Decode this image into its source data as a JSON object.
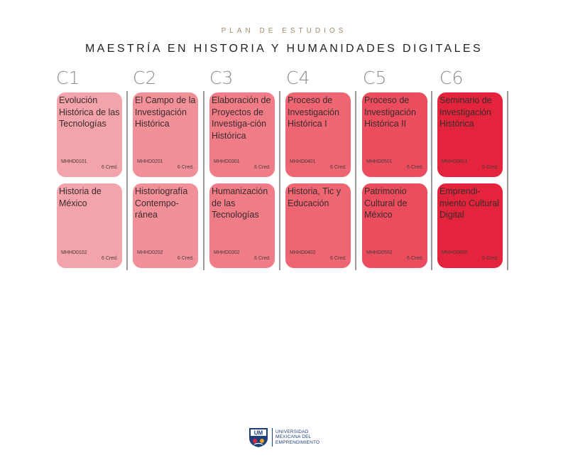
{
  "header": {
    "subtitle": "PLAN DE ESTUDIOS",
    "title": "MAESTRÍA EN HISTORIA Y HUMANIDADES DIGITALES"
  },
  "columns": [
    {
      "label": "C1",
      "courses": [
        {
          "name": "Evolución Histórica de las Tecnologías",
          "code": "MHHD0101",
          "credits": "6 Cred."
        },
        {
          "name": "Historia de México",
          "code": "MHHD0102",
          "credits": "6 Cred."
        }
      ]
    },
    {
      "label": "C2",
      "courses": [
        {
          "name": "El Campo de la Investigación Histórica",
          "code": "MHHD0201",
          "credits": "6 Cred."
        },
        {
          "name": "Historiografía Contempo-ránea",
          "code": "MHHD0202",
          "credits": "6 Cred."
        }
      ]
    },
    {
      "label": "C3",
      "courses": [
        {
          "name": "Elaboración de Proyectos de Investiga-ción Histórica",
          "code": "MHHD0301",
          "credits": "6 Cred."
        },
        {
          "name": "Humanización de las Tecnologías",
          "code": "MHHD0302",
          "credits": "6 Cred."
        }
      ]
    },
    {
      "label": "C4",
      "courses": [
        {
          "name": "Proceso de Investigación Histórica I",
          "code": "MHHD0401",
          "credits": "6 Cred."
        },
        {
          "name": "Historia, Tic y Educación",
          "code": "MHHD0402",
          "credits": "6 Cred."
        }
      ]
    },
    {
      "label": "C5",
      "courses": [
        {
          "name": "Proceso de Investigación Histórica II",
          "code": "MHHD0501",
          "credits": "6 Cred."
        },
        {
          "name": "Patrimonio Cultural de México",
          "code": "MHHD0502",
          "credits": "6 Cred."
        }
      ]
    },
    {
      "label": "C6",
      "courses": [
        {
          "name": "Seminario de Investigación Histórica",
          "code": "MHHD0601",
          "credits": "6 Cred."
        },
        {
          "name": "Emprendi-miento Cultural Digital",
          "code": "MHHD0602",
          "credits": "6 Cred."
        }
      ]
    }
  ],
  "logo": {
    "mark_text": "UM",
    "line1": "UNIVERSIDAD",
    "line2": "MEXICANA DEL",
    "line3": "EMPRENDIMIENTO"
  },
  "colors": {
    "c1": "#f3a4ab",
    "c2": "#f2909a",
    "c3": "#f07c88",
    "c4": "#ee6673",
    "c5": "#eb4d5e",
    "c6": "#e4243c",
    "subtitle": "#a08a6a",
    "logo_blue": "#1d3f7a"
  }
}
